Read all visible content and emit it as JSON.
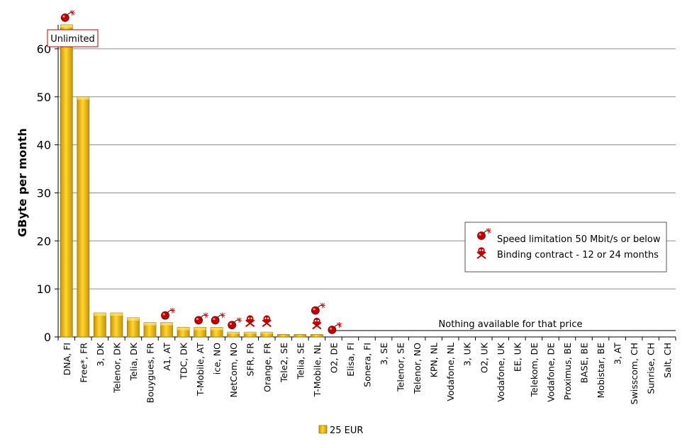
{
  "chart_data": {
    "type": "bar",
    "ylabel": "GByte per month",
    "xlabel": "",
    "ylim": [
      0,
      65
    ],
    "yticks": [
      0,
      10,
      20,
      30,
      40,
      50,
      60
    ],
    "grid": true,
    "categories": [
      "DNA, FI",
      "Free*, FR",
      "3, DK",
      "Telenor, DK",
      "Telia, DK",
      "Bouygues, FR",
      "A1, AT",
      "TDC, DK",
      "T-Mobile, AT",
      "ice, NO",
      "NetCom, NO",
      "SFR, FR",
      "Orange, FR",
      "Tele2, SE",
      "Telia, SE",
      "T-Mobile, NL",
      "O2, DE",
      "Elisa, FI",
      "Sonera, FI",
      "3, SE",
      "Telenor, SE",
      "Telenor, NO",
      "KPN, NL",
      "Vodafone, NL",
      "3, UK",
      "O2, UK",
      "Vodafone, UK",
      "EE, UK",
      "Telekom, DE",
      "Vodafone, DE",
      "Proximus, BE",
      "BASE, BE",
      "Mobistar, BE",
      "3, AT",
      "Swisscom, CH",
      "Sunrise, CH",
      "Salt, CH"
    ],
    "series": [
      {
        "name": "25 EUR",
        "color": "#f2c200",
        "values": [
          65,
          50,
          5,
          5,
          4,
          3,
          3,
          2,
          2,
          2,
          1,
          1,
          1,
          0.5,
          0.5,
          0.5,
          0,
          0,
          0,
          0,
          0,
          0,
          0,
          0,
          0,
          0,
          0,
          0,
          0,
          0,
          0,
          0,
          0,
          0,
          0,
          0,
          0
        ]
      }
    ],
    "markers": {
      "speed_limited": [
        "DNA, FI",
        "A1, AT",
        "T-Mobile, AT",
        "ice, NO",
        "NetCom, NO",
        "T-Mobile, NL",
        "O2, DE"
      ],
      "binding_contract": [
        "SFR, FR",
        "Orange, FR",
        "T-Mobile, NL"
      ]
    },
    "annotations": {
      "unlimited": "Unlimited",
      "nothing_available": "Nothing available for that price"
    },
    "legend_placement": "right",
    "legend_entries": [
      {
        "icon": "bomb-icon",
        "label": "Speed limitation  50 Mbit/s or below"
      },
      {
        "icon": "skull-icon",
        "label": "Binding  contract - 12 or 24 months"
      }
    ],
    "bottom_legend": "25 EUR"
  }
}
